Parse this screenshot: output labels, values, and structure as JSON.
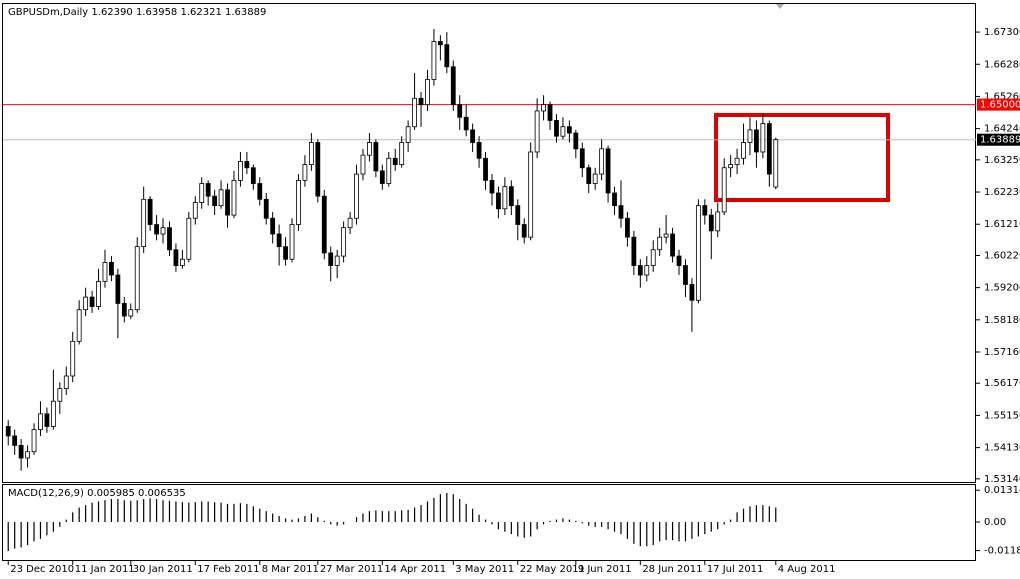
{
  "chart_data": {
    "type": "candlestick",
    "title": "GBPUSDm,Daily  1.62390 1.63958 1.62321 1.63889",
    "up_color": "#ffffff",
    "down_color": "#000000",
    "wick_color": "#000000",
    "ylim": [
      1.5304,
      1.6819
    ],
    "yticks": [
      {
        "value": 1.673,
        "label": "1.67300"
      },
      {
        "value": 1.6628,
        "label": "1.66280"
      },
      {
        "value": 1.6526,
        "label": "1.65260"
      },
      {
        "value": 1.6424,
        "label": "1.64240"
      },
      {
        "value": 1.6325,
        "label": "1.63250"
      },
      {
        "value": 1.6223,
        "label": "1.62230"
      },
      {
        "value": 1.6121,
        "label": "1.61210"
      },
      {
        "value": 1.6022,
        "label": "1.60220"
      },
      {
        "value": 1.592,
        "label": "1.59200"
      },
      {
        "value": 1.5818,
        "label": "1.58180"
      },
      {
        "value": 1.5716,
        "label": "1.57160"
      },
      {
        "value": 1.5617,
        "label": "1.56170"
      },
      {
        "value": 1.5515,
        "label": "1.55150"
      },
      {
        "value": 1.5413,
        "label": "1.54130"
      },
      {
        "value": 1.5314,
        "label": "1.53140"
      }
    ],
    "xticks": [
      {
        "value": 0,
        "label": "23 Dec 2010"
      },
      {
        "value": 10,
        "label": "11 Jan 2011"
      },
      {
        "value": 19,
        "label": "30 Jan 2011"
      },
      {
        "value": 29,
        "label": "17 Feb 2011"
      },
      {
        "value": 39,
        "label": "8 Mar 2011"
      },
      {
        "value": 48,
        "label": "27 Mar 2011"
      },
      {
        "value": 58,
        "label": "14 Apr 2011"
      },
      {
        "value": 69,
        "label": "3 May 2011"
      },
      {
        "value": 79,
        "label": "22 May 2011"
      },
      {
        "value": 88,
        "label": "9 Jun 2011"
      },
      {
        "value": 98,
        "label": "28 Jun 2011"
      },
      {
        "value": 108,
        "label": "17 Jul 2011"
      },
      {
        "value": 119,
        "label": "4 Aug 2011"
      }
    ],
    "level_line": {
      "value": 1.65,
      "label": "1.65000",
      "color": "#ff0000"
    },
    "bid_line": 1.63889,
    "ohlc": [
      [
        1.548,
        1.55,
        1.542,
        1.545
      ],
      [
        1.545,
        1.547,
        1.539,
        1.542
      ],
      [
        1.542,
        1.544,
        1.534,
        1.538
      ],
      [
        1.538,
        1.542,
        1.535,
        1.54
      ],
      [
        1.54,
        1.549,
        1.539,
        1.547
      ],
      [
        1.547,
        1.556,
        1.545,
        1.552
      ],
      [
        1.552,
        1.554,
        1.546,
        1.548
      ],
      [
        1.548,
        1.566,
        1.547,
        1.556
      ],
      [
        1.556,
        1.562,
        1.552,
        1.56
      ],
      [
        1.56,
        1.567,
        1.558,
        1.564
      ],
      [
        1.564,
        1.578,
        1.562,
        1.575
      ],
      [
        1.575,
        1.588,
        1.574,
        1.585
      ],
      [
        1.585,
        1.592,
        1.583,
        1.589
      ],
      [
        1.589,
        1.591,
        1.584,
        1.586
      ],
      [
        1.586,
        1.598,
        1.585,
        1.594
      ],
      [
        1.594,
        1.604,
        1.592,
        1.6
      ],
      [
        1.6,
        1.602,
        1.594,
        1.596
      ],
      [
        1.596,
        1.598,
        1.576,
        1.587
      ],
      [
        1.587,
        1.589,
        1.581,
        1.583
      ],
      [
        1.583,
        1.587,
        1.582,
        1.585
      ],
      [
        1.585,
        1.608,
        1.584,
        1.605
      ],
      [
        1.605,
        1.624,
        1.603,
        1.62
      ],
      [
        1.62,
        1.621,
        1.61,
        1.612
      ],
      [
        1.612,
        1.615,
        1.607,
        1.609
      ],
      [
        1.609,
        1.614,
        1.606,
        1.611
      ],
      [
        1.611,
        1.613,
        1.602,
        1.604
      ],
      [
        1.604,
        1.606,
        1.597,
        1.599
      ],
      [
        1.599,
        1.604,
        1.598,
        1.601
      ],
      [
        1.601,
        1.616,
        1.6,
        1.614
      ],
      [
        1.614,
        1.621,
        1.612,
        1.619
      ],
      [
        1.619,
        1.627,
        1.617,
        1.625
      ],
      [
        1.625,
        1.626,
        1.618,
        1.621
      ],
      [
        1.621,
        1.623,
        1.615,
        1.618
      ],
      [
        1.618,
        1.626,
        1.617,
        1.623
      ],
      [
        1.623,
        1.625,
        1.611,
        1.615
      ],
      [
        1.615,
        1.629,
        1.614,
        1.626
      ],
      [
        1.626,
        1.635,
        1.624,
        1.632
      ],
      [
        1.632,
        1.635,
        1.628,
        1.63
      ],
      [
        1.63,
        1.631,
        1.623,
        1.625
      ],
      [
        1.625,
        1.627,
        1.618,
        1.62
      ],
      [
        1.62,
        1.622,
        1.612,
        1.614
      ],
      [
        1.614,
        1.616,
        1.606,
        1.609
      ],
      [
        1.609,
        1.612,
        1.599,
        1.605
      ],
      [
        1.605,
        1.608,
        1.599,
        1.601
      ],
      [
        1.601,
        1.614,
        1.6,
        1.612
      ],
      [
        1.612,
        1.628,
        1.61,
        1.626
      ],
      [
        1.626,
        1.634,
        1.624,
        1.631
      ],
      [
        1.631,
        1.641,
        1.629,
        1.638
      ],
      [
        1.638,
        1.639,
        1.619,
        1.621
      ],
      [
        1.621,
        1.623,
        1.601,
        1.603
      ],
      [
        1.603,
        1.605,
        1.594,
        1.599
      ],
      [
        1.599,
        1.604,
        1.595,
        1.602
      ],
      [
        1.602,
        1.613,
        1.6,
        1.611
      ],
      [
        1.611,
        1.616,
        1.609,
        1.614
      ],
      [
        1.614,
        1.631,
        1.612,
        1.628
      ],
      [
        1.628,
        1.636,
        1.626,
        1.634
      ],
      [
        1.634,
        1.641,
        1.632,
        1.638
      ],
      [
        1.638,
        1.639,
        1.627,
        1.629
      ],
      [
        1.629,
        1.631,
        1.623,
        1.625
      ],
      [
        1.625,
        1.635,
        1.624,
        1.633
      ],
      [
        1.633,
        1.636,
        1.629,
        1.631
      ],
      [
        1.631,
        1.64,
        1.63,
        1.638
      ],
      [
        1.638,
        1.645,
        1.635,
        1.643
      ],
      [
        1.643,
        1.66,
        1.642,
        1.652
      ],
      [
        1.652,
        1.654,
        1.643,
        1.65
      ],
      [
        1.65,
        1.661,
        1.648,
        1.658
      ],
      [
        1.658,
        1.674,
        1.656,
        1.67
      ],
      [
        1.67,
        1.672,
        1.664,
        1.669
      ],
      [
        1.669,
        1.673,
        1.66,
        1.662
      ],
      [
        1.662,
        1.664,
        1.648,
        1.65
      ],
      [
        1.65,
        1.653,
        1.642,
        1.646
      ],
      [
        1.646,
        1.65,
        1.64,
        1.642
      ],
      [
        1.642,
        1.644,
        1.635,
        1.638
      ],
      [
        1.638,
        1.64,
        1.63,
        1.633
      ],
      [
        1.633,
        1.635,
        1.623,
        1.626
      ],
      [
        1.626,
        1.628,
        1.618,
        1.622
      ],
      [
        1.622,
        1.624,
        1.614,
        1.617
      ],
      [
        1.617,
        1.627,
        1.615,
        1.624
      ],
      [
        1.624,
        1.626,
        1.615,
        1.618
      ],
      [
        1.618,
        1.62,
        1.607,
        1.612
      ],
      [
        1.612,
        1.614,
        1.606,
        1.608
      ],
      [
        1.608,
        1.638,
        1.607,
        1.635
      ],
      [
        1.635,
        1.652,
        1.633,
        1.648
      ],
      [
        1.648,
        1.653,
        1.645,
        1.65
      ],
      [
        1.65,
        1.651,
        1.642,
        1.645
      ],
      [
        1.645,
        1.647,
        1.638,
        1.64
      ],
      [
        1.64,
        1.646,
        1.639,
        1.643
      ],
      [
        1.643,
        1.645,
        1.638,
        1.641
      ],
      [
        1.641,
        1.642,
        1.633,
        1.636
      ],
      [
        1.636,
        1.638,
        1.627,
        1.63
      ],
      [
        1.63,
        1.631,
        1.622,
        1.625
      ],
      [
        1.625,
        1.63,
        1.623,
        1.628
      ],
      [
        1.628,
        1.639,
        1.626,
        1.636
      ],
      [
        1.636,
        1.637,
        1.619,
        1.622
      ],
      [
        1.622,
        1.624,
        1.615,
        1.618
      ],
      [
        1.618,
        1.626,
        1.611,
        1.614
      ],
      [
        1.614,
        1.616,
        1.605,
        1.608
      ],
      [
        1.608,
        1.61,
        1.596,
        1.599
      ],
      [
        1.599,
        1.601,
        1.592,
        1.596
      ],
      [
        1.596,
        1.602,
        1.594,
        1.599
      ],
      [
        1.599,
        1.607,
        1.597,
        1.604
      ],
      [
        1.604,
        1.611,
        1.602,
        1.608
      ],
      [
        1.608,
        1.615,
        1.606,
        1.609
      ],
      [
        1.609,
        1.611,
        1.6,
        1.602
      ],
      [
        1.602,
        1.604,
        1.596,
        1.599
      ],
      [
        1.599,
        1.601,
        1.589,
        1.593
      ],
      [
        1.593,
        1.595,
        1.578,
        1.588
      ],
      [
        1.588,
        1.62,
        1.587,
        1.618
      ],
      [
        1.618,
        1.62,
        1.612,
        1.615
      ],
      [
        1.615,
        1.617,
        1.601,
        1.61
      ],
      [
        1.61,
        1.619,
        1.608,
        1.616
      ],
      [
        1.616,
        1.633,
        1.615,
        1.63
      ],
      [
        1.63,
        1.634,
        1.627,
        1.631
      ],
      [
        1.631,
        1.636,
        1.628,
        1.633
      ],
      [
        1.633,
        1.644,
        1.631,
        1.638
      ],
      [
        1.638,
        1.646,
        1.634,
        1.642
      ],
      [
        1.642,
        1.645,
        1.63,
        1.635
      ],
      [
        1.635,
        1.647,
        1.633,
        1.644
      ],
      [
        1.644,
        1.645,
        1.624,
        1.628
      ],
      [
        1.6239,
        1.63958,
        1.62321,
        1.63889
      ]
    ],
    "macd": {
      "label": "MACD(12,26,9) 0.005985 0.006535",
      "ylim": [
        -0.0157,
        0.0153
      ],
      "yticks": [
        0.013143,
        {
          "value": 0,
          "label": "0.00"
        },
        -0.011822
      ],
      "values": [
        -0.012,
        -0.011,
        -0.0105,
        -0.0095,
        -0.008,
        -0.007,
        -0.0055,
        -0.004,
        -0.002,
        0.001,
        0.004,
        0.006,
        0.007,
        0.008,
        0.0085,
        0.009,
        0.0095,
        0.0095,
        0.009,
        0.0088,
        0.009,
        0.0095,
        0.0098,
        0.0095,
        0.009,
        0.0088,
        0.0085,
        0.0082,
        0.008,
        0.0082,
        0.0085,
        0.0085,
        0.0082,
        0.008,
        0.0075,
        0.0075,
        0.0078,
        0.0075,
        0.0065,
        0.0055,
        0.0045,
        0.0035,
        0.0025,
        0.0015,
        0.001,
        0.0015,
        0.0025,
        0.0035,
        0.002,
        0.0005,
        -0.001,
        -0.0015,
        -0.001,
        0.0,
        0.002,
        0.0035,
        0.0045,
        0.0048,
        0.0045,
        0.0045,
        0.0045,
        0.0048,
        0.005,
        0.006,
        0.007,
        0.0085,
        0.01,
        0.0115,
        0.012,
        0.0115,
        0.0095,
        0.0075,
        0.0055,
        0.003,
        0.001,
        -0.001,
        -0.003,
        -0.004,
        -0.005,
        -0.006,
        -0.0065,
        -0.006,
        -0.003,
        -0.001,
        0.0005,
        0.001,
        0.0015,
        0.001,
        0.0005,
        -0.0005,
        -0.0015,
        -0.002,
        -0.002,
        -0.003,
        -0.004,
        -0.005,
        -0.007,
        -0.009,
        -0.01,
        -0.01,
        -0.0095,
        -0.008,
        -0.0075,
        -0.0075,
        -0.008,
        -0.008,
        -0.007,
        -0.006,
        -0.005,
        -0.004,
        -0.003,
        -0.001,
        0.001,
        0.004,
        0.0055,
        0.0065,
        0.007,
        0.007,
        0.0065,
        0.006
      ]
    }
  }
}
